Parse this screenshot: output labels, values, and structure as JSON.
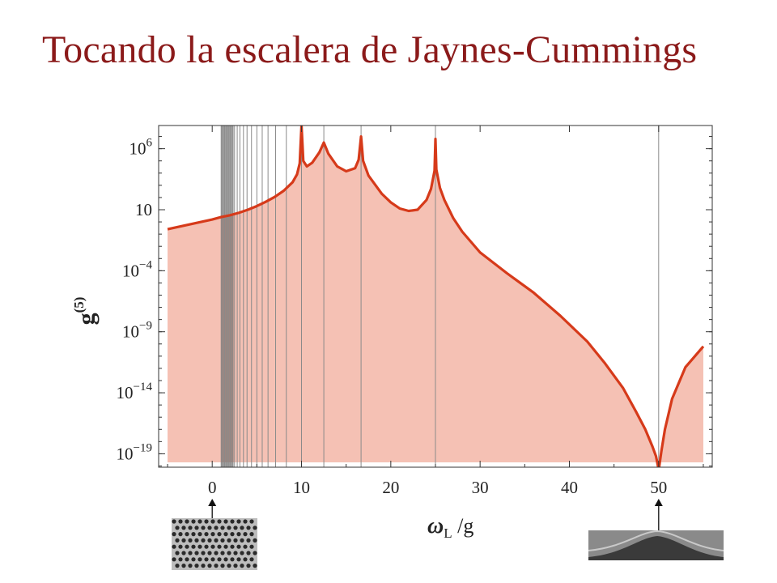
{
  "slide": {
    "title": "Tocando la escalera de Jaynes-Cummings"
  },
  "chart_data": {
    "type": "area",
    "title": "",
    "xlabel": {
      "main": "ω",
      "sub": "L",
      "rest": " /g"
    },
    "ylabel": {
      "main": "g",
      "sup": "(5)"
    },
    "xlim": [
      -6,
      56
    ],
    "ylim_log10": [
      -20.1,
      7.9
    ],
    "x_ticks": [
      0,
      10,
      20,
      30,
      40,
      50
    ],
    "x_tick_labels": [
      "0",
      "10",
      "20",
      "30",
      "40",
      "50"
    ],
    "y_ticks_log10": [
      6,
      1,
      -4,
      -9,
      -14,
      -19
    ],
    "y_tick_labels": [
      {
        "base": "10",
        "exp": "6"
      },
      {
        "base": "10",
        "exp": ""
      },
      {
        "base": "10",
        "exp": "−4"
      },
      {
        "base": "10",
        "exp": "−9"
      },
      {
        "base": "10",
        "exp": "−14"
      },
      {
        "base": "10",
        "exp": "−19"
      }
    ],
    "y_scale": "log",
    "series": [
      {
        "x": [
          -5,
          0,
          1,
          2,
          3,
          4,
          5,
          6,
          7,
          8,
          9,
          9.5,
          9.8,
          10,
          10.2,
          10.6,
          11.2,
          12.0,
          12.5,
          13.0,
          14.0,
          15.0,
          16.0,
          16.4,
          16.67,
          16.9,
          17.5,
          19,
          20,
          21,
          22,
          23,
          24,
          24.5,
          24.9,
          25,
          25.1,
          25.5,
          26,
          27,
          28,
          30,
          33,
          36,
          39,
          42,
          44,
          46,
          47.5,
          48.5,
          49.3,
          49.7,
          49.95,
          50.05,
          50.3,
          50.7,
          51.5,
          53,
          55
        ],
        "log10": [
          -0.6,
          0.2,
          0.4,
          0.55,
          0.75,
          1.0,
          1.3,
          1.65,
          2.05,
          2.55,
          3.25,
          3.9,
          4.8,
          7.9,
          5.0,
          4.55,
          4.85,
          5.7,
          6.5,
          5.6,
          4.55,
          4.15,
          4.4,
          5.1,
          7.0,
          5.0,
          3.8,
          2.3,
          1.6,
          1.1,
          0.9,
          1.0,
          1.8,
          2.7,
          4.2,
          6.8,
          4.3,
          2.8,
          1.8,
          0.3,
          -0.8,
          -2.5,
          -4.2,
          -5.8,
          -7.7,
          -9.8,
          -11.6,
          -13.6,
          -15.6,
          -17.0,
          -18.4,
          -19.2,
          -20.1,
          -20.1,
          -18.8,
          -17.0,
          -14.5,
          -11.9,
          -10.2
        ]
      }
    ],
    "vertical_lines_x": [
      1,
      1.2,
      1.4,
      1.6,
      1.8,
      2.0,
      2.25,
      2.5,
      2.8,
      3.1,
      3.5,
      3.9,
      4.4,
      5.0,
      5.6,
      6.25,
      7.1,
      8.3,
      10,
      12.5,
      16.67,
      25,
      50
    ],
    "shaded_band_x": [
      1,
      2.4
    ],
    "grid": false,
    "legend": "none",
    "colors": {
      "curve": "#d63a1a",
      "fill": "#f5c1b4",
      "vlines": "#8a8a8a",
      "band": "#555555",
      "title": "#8b1a1a"
    },
    "markers": [
      {
        "x": 0,
        "image": "photonic-crystal-micrograph"
      },
      {
        "x": 50,
        "image": "cavity-micrograph"
      }
    ]
  }
}
